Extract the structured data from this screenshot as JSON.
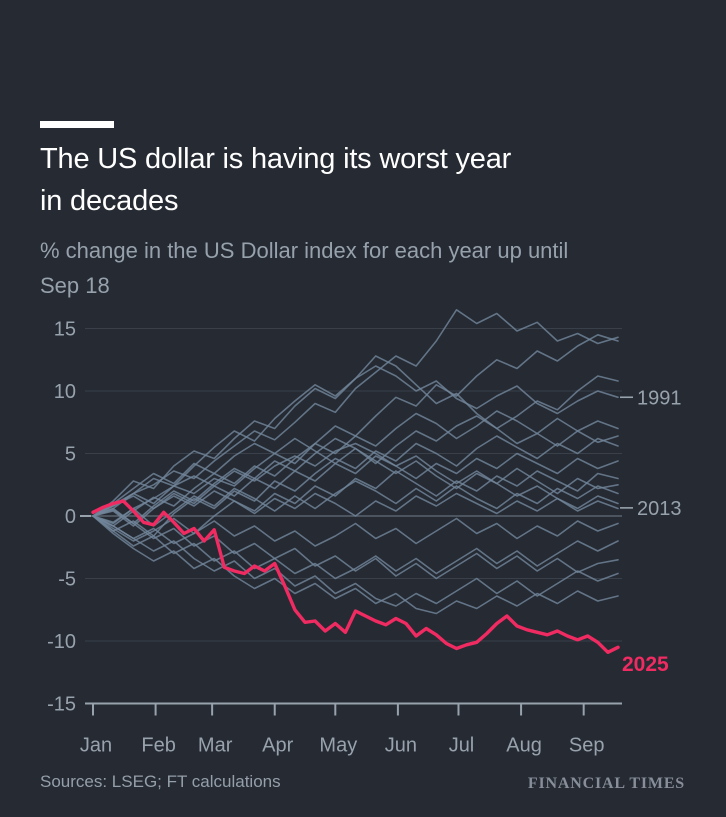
{
  "header": {
    "title_line1": "The US dollar is having its worst year",
    "title_line2": "in decades",
    "subtitle_line1": "% change in the US Dollar index for each year up until",
    "subtitle_line2": "Sep 18"
  },
  "footer": {
    "sources": "Sources: LSEG; FT calculations",
    "brand": "FINANCIAL TIMES"
  },
  "chart_data": {
    "type": "line",
    "title": "The US dollar is having its worst year in decades",
    "subtitle": "% change in the US Dollar index for each year up until Sep 18",
    "ylabel": "",
    "xlabel": "",
    "ylim": [
      -15,
      15
    ],
    "y_ticks": [
      15,
      10,
      5,
      0,
      -5,
      -10,
      -15
    ],
    "x_tick_labels": [
      "Jan",
      "Feb",
      "Mar",
      "Apr",
      "May",
      "Jun",
      "Jul",
      "Aug",
      "Sep"
    ],
    "x_tick_days": [
      0,
      31,
      59,
      90,
      120,
      151,
      181,
      212,
      243
    ],
    "x_total_days": 260,
    "grid": "horizontal-only",
    "legend": "none",
    "colors": {
      "background": "#252a33",
      "history_line": "#72859a",
      "current_line": "#ef2b62",
      "grid": "#39404a",
      "zero_line": "#59626e",
      "axis": "#98a2ac",
      "label": "#98a2ac"
    },
    "annotations": [
      {
        "label": "1991",
        "value": 9.5,
        "style": "history",
        "dash": true
      },
      {
        "label": "2013",
        "value": 0.65,
        "style": "history",
        "dash": true
      },
      {
        "label": "2025",
        "value": -11.85,
        "style": "current",
        "dash": false
      }
    ],
    "series": [
      {
        "name": "history-01",
        "role": "history",
        "values": [
          0,
          0.9,
          1.8,
          2.5,
          3.6,
          3.0,
          4.4,
          5.6,
          6.8,
          6.1,
          7.5,
          9.0,
          8.3,
          10.2,
          11.5,
          12.8,
          12.0,
          14.0,
          16.5,
          15.4,
          16.2,
          14.8,
          15.5,
          14.0,
          14.6,
          13.8,
          14.3
        ]
      },
      {
        "name": "history-02",
        "role": "history",
        "values": [
          0,
          -0.5,
          0.6,
          1.4,
          2.4,
          1.8,
          3.0,
          2.4,
          3.8,
          5.0,
          4.2,
          5.8,
          7.2,
          6.4,
          8.0,
          9.5,
          8.8,
          10.5,
          9.6,
          11.2,
          12.5,
          11.8,
          13.2,
          12.4,
          13.6,
          14.5,
          14.0
        ]
      },
      {
        "name": "history-03",
        "role": "history",
        "values": [
          0,
          1.2,
          2.8,
          2.2,
          4.0,
          5.2,
          4.6,
          6.2,
          7.6,
          7.0,
          8.8,
          10.2,
          9.4,
          11.0,
          12.8,
          12.0,
          10.5,
          9.0,
          9.8,
          8.2,
          7.0,
          8.0,
          9.2,
          8.5,
          10.0,
          11.2,
          10.8
        ]
      },
      {
        "name": "1991",
        "role": "history",
        "values": [
          0,
          0.6,
          1.8,
          3.0,
          2.4,
          4.0,
          5.5,
          6.8,
          6.0,
          7.8,
          9.2,
          10.5,
          9.6,
          11.0,
          12.0,
          11.2,
          10.0,
          10.8,
          9.4,
          8.6,
          9.6,
          10.4,
          9.0,
          8.2,
          9.2,
          10.0,
          9.5
        ]
      },
      {
        "name": "history-05",
        "role": "history",
        "values": [
          0,
          -0.8,
          0.4,
          1.5,
          0.8,
          2.2,
          3.4,
          2.6,
          4.0,
          3.2,
          4.6,
          5.8,
          5.0,
          6.4,
          5.6,
          7.0,
          8.2,
          7.4,
          6.2,
          7.2,
          8.4,
          7.6,
          6.6,
          7.8,
          6.8,
          7.6,
          7.0
        ]
      },
      {
        "name": "history-06",
        "role": "history",
        "values": [
          0,
          0.5,
          -0.6,
          0.8,
          2.0,
          1.2,
          2.6,
          3.8,
          3.0,
          4.4,
          3.6,
          5.0,
          6.2,
          5.4,
          4.2,
          5.6,
          6.8,
          6.0,
          7.2,
          8.0,
          7.0,
          5.8,
          6.6,
          5.6,
          6.8,
          5.9,
          6.4
        ]
      },
      {
        "name": "history-07",
        "role": "history",
        "values": [
          0,
          -1.2,
          -0.4,
          -1.6,
          0.2,
          1.4,
          0.6,
          2.0,
          1.2,
          2.8,
          2.0,
          3.4,
          4.6,
          3.8,
          5.2,
          4.4,
          5.8,
          5.0,
          4.0,
          5.4,
          6.4,
          5.5,
          4.6,
          5.8,
          5.0,
          6.2,
          5.6
        ]
      },
      {
        "name": "history-08",
        "role": "history",
        "values": [
          0,
          0.8,
          1.6,
          0.6,
          1.8,
          1.0,
          2.4,
          1.6,
          3.0,
          2.2,
          3.6,
          2.8,
          4.2,
          3.4,
          4.8,
          4.0,
          3.0,
          4.2,
          3.4,
          4.6,
          3.8,
          5.0,
          4.2,
          3.4,
          4.6,
          3.8,
          4.4
        ]
      },
      {
        "name": "history-09",
        "role": "history",
        "values": [
          0,
          -1.0,
          -2.0,
          -1.2,
          -0.2,
          -1.4,
          0.0,
          1.2,
          0.4,
          1.8,
          1.0,
          2.4,
          1.6,
          3.0,
          2.2,
          3.6,
          2.6,
          1.6,
          2.8,
          2.0,
          3.2,
          2.4,
          3.6,
          2.8,
          2.0,
          3.4,
          3.0
        ]
      },
      {
        "name": "history-10",
        "role": "history",
        "values": [
          0,
          1.0,
          2.2,
          3.4,
          2.6,
          4.2,
          3.4,
          4.8,
          5.8,
          5.0,
          6.2,
          5.2,
          4.2,
          5.4,
          4.4,
          3.4,
          4.4,
          3.2,
          2.2,
          3.4,
          2.6,
          3.8,
          2.8,
          1.8,
          3.0,
          2.2,
          2.5
        ]
      },
      {
        "name": "history-11",
        "role": "history",
        "values": [
          0,
          -0.6,
          0.6,
          -0.8,
          0.4,
          1.6,
          0.8,
          2.2,
          1.4,
          0.4,
          1.6,
          0.6,
          1.8,
          2.8,
          2.0,
          1.0,
          2.2,
          1.2,
          2.4,
          1.4,
          0.6,
          1.8,
          1.0,
          2.2,
          1.4,
          2.4,
          1.8
        ]
      },
      {
        "name": "2013",
        "role": "history",
        "values": [
          0,
          0.8,
          1.8,
          1.0,
          2.4,
          3.2,
          2.4,
          3.6,
          2.8,
          4.0,
          4.8,
          4.0,
          5.2,
          5.8,
          5.0,
          4.0,
          4.8,
          3.6,
          2.6,
          3.6,
          2.6,
          1.6,
          2.4,
          1.4,
          0.4,
          1.2,
          0.6
        ]
      },
      {
        "name": "history-13",
        "role": "history",
        "values": [
          0,
          -0.8,
          -1.8,
          -1.0,
          -2.2,
          -1.4,
          -0.4,
          -1.6,
          -0.8,
          -2.0,
          -1.2,
          -2.4,
          -1.6,
          -0.6,
          -1.8,
          -1.0,
          -2.2,
          -1.2,
          -0.2,
          -1.4,
          -0.6,
          -1.8,
          -0.8,
          -1.6,
          -0.4,
          -1.2,
          -0.6
        ]
      },
      {
        "name": "history-14",
        "role": "history",
        "values": [
          0,
          -1.2,
          -2.4,
          -1.6,
          -3.0,
          -2.2,
          -3.6,
          -2.8,
          -4.2,
          -3.4,
          -4.6,
          -3.8,
          -5.0,
          -4.2,
          -3.2,
          -4.4,
          -3.4,
          -4.6,
          -3.6,
          -2.6,
          -3.8,
          -2.8,
          -4.0,
          -3.0,
          -2.0,
          -2.8,
          -2.0
        ]
      },
      {
        "name": "history-15",
        "role": "history",
        "values": [
          0,
          0.6,
          -0.6,
          -1.8,
          -1.0,
          -2.4,
          -1.6,
          -3.0,
          -2.2,
          -3.4,
          -2.6,
          -4.0,
          -3.2,
          -4.4,
          -3.4,
          -4.8,
          -3.8,
          -5.0,
          -4.0,
          -3.0,
          -4.2,
          -3.2,
          -4.4,
          -3.4,
          -4.5,
          -3.8,
          -3.5
        ]
      },
      {
        "name": "history-16",
        "role": "history",
        "values": [
          0,
          -0.8,
          -1.8,
          -2.8,
          -2.0,
          -3.4,
          -4.4,
          -3.6,
          -5.0,
          -4.2,
          -5.6,
          -4.8,
          -6.2,
          -5.4,
          -6.6,
          -7.2,
          -6.2,
          -7.0,
          -6.0,
          -5.0,
          -6.2,
          -5.2,
          -6.4,
          -5.4,
          -4.4,
          -5.2,
          -4.6
        ]
      },
      {
        "name": "history-17",
        "role": "history",
        "values": [
          0,
          -1.4,
          -2.6,
          -3.6,
          -2.8,
          -4.2,
          -3.4,
          -4.8,
          -5.8,
          -5.0,
          -6.2,
          -5.4,
          -6.6,
          -5.8,
          -7.0,
          -6.2,
          -7.4,
          -7.8,
          -6.8,
          -7.4,
          -6.4,
          -7.2,
          -6.2,
          -7.0,
          -6.0,
          -6.8,
          -6.4
        ]
      },
      {
        "name": "history-18",
        "role": "history",
        "values": [
          0,
          0.4,
          -0.8,
          0.6,
          1.6,
          0.8,
          2.0,
          1.2,
          0.2,
          1.4,
          0.6,
          1.8,
          1.0,
          0.0,
          1.2,
          0.4,
          1.6,
          0.8,
          1.8,
          1.0,
          0.2,
          1.2,
          0.4,
          1.4,
          0.6,
          1.6,
          1.0
        ]
      },
      {
        "name": "2025",
        "role": "current",
        "values": [
          0.3,
          0.7,
          1.0,
          1.2,
          0.4,
          -0.5,
          -0.7,
          0.3,
          -0.5,
          -1.4,
          -1.0,
          -2.0,
          -1.1,
          -4.1,
          -4.4,
          -4.6,
          -4.0,
          -4.4,
          -3.8,
          -5.6,
          -7.5,
          -8.5,
          -8.4,
          -9.2,
          -8.6,
          -9.3,
          -7.6,
          -8.0,
          -8.4,
          -8.7,
          -8.2,
          -8.6,
          -9.6,
          -9.0,
          -9.5,
          -10.2,
          -10.6,
          -10.3,
          -10.1,
          -9.4,
          -8.6,
          -8.0,
          -8.8,
          -9.1,
          -9.3,
          -9.5,
          -9.2,
          -9.6,
          -9.9,
          -9.6,
          -10.1,
          -10.9,
          -10.5
        ]
      }
    ]
  }
}
